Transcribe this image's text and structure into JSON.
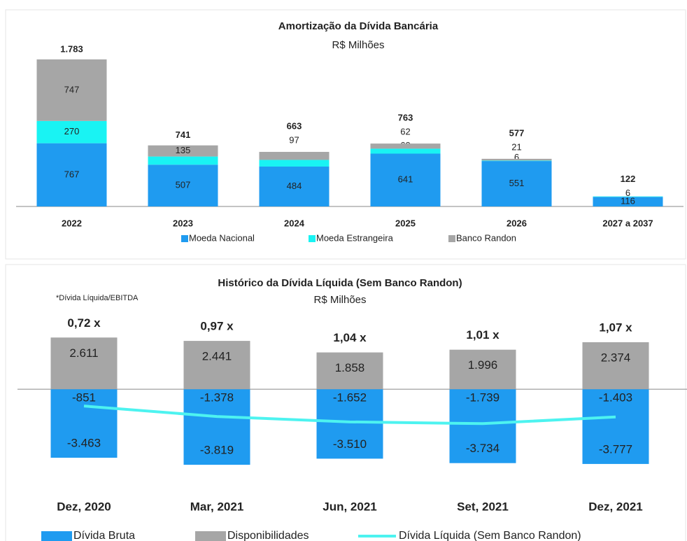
{
  "chart_data": [
    {
      "type": "bar",
      "stacked": true,
      "title": "Amortização da Dívida Bancária",
      "subtitle": "R$ Milhões",
      "categories": [
        "2022",
        "2023",
        "2024",
        "2025",
        "2026",
        "2027 a 2037"
      ],
      "ylim": [
        0,
        2000
      ],
      "series": [
        {
          "name": "Moeda Nacional",
          "color": "#1f9bf0",
          "values": [
            767,
            507,
            484,
            641,
            551,
            116
          ]
        },
        {
          "name": "Moeda Estrangeira",
          "color": "#19f3f3",
          "values": [
            270,
            99,
            81,
            60,
            6,
            6
          ]
        },
        {
          "name": "Banco Randon",
          "color": "#a6a6a6",
          "values": [
            747,
            135,
            97,
            62,
            21,
            null
          ]
        }
      ],
      "totals": {
        "values": [
          1783,
          741,
          663,
          763,
          577,
          122
        ],
        "value_labels": [
          "1.783",
          "741",
          "663",
          "763",
          "577",
          "122"
        ]
      }
    },
    {
      "type": "bar",
      "title": "Histórico da Dívida Líquida (Sem Banco Randon)",
      "subtitle": "R$ Milhões",
      "note": "*Dívida Líquida/EBITDA",
      "categories": [
        "Dez, 2020",
        "Mar, 2021",
        "Jun, 2021",
        "Set, 2021",
        "Dez, 2021"
      ],
      "ylim": [
        -5000,
        4000
      ],
      "ratio_labels": [
        "0,72 x",
        "0,97 x",
        "1,04 x",
        "1,01 x",
        "1,07 x"
      ],
      "series": [
        {
          "name": "Dívida Bruta",
          "color": "#1f9bf0",
          "values": [
            -3463,
            -3819,
            -3510,
            -3734,
            -3777
          ],
          "value_labels": [
            "-3.463",
            "-3.819",
            "-3.510",
            "-3.734",
            "-3.777"
          ]
        },
        {
          "name": "Disponibilidades",
          "color": "#a6a6a6",
          "values": [
            2611,
            2441,
            1858,
            1996,
            2374
          ],
          "value_labels": [
            "2.611",
            "2.441",
            "1.858",
            "1.996",
            "2.374"
          ]
        },
        {
          "name": "Dívida Líquida (Sem Banco Randon)",
          "type": "line",
          "color": "#4df3f0",
          "values": [
            -851,
            -1378,
            -1652,
            -1739,
            -1403
          ],
          "value_labels": [
            "-851",
            "-1.378",
            "-1.652",
            "-1.739",
            "-1.403"
          ]
        }
      ]
    }
  ]
}
